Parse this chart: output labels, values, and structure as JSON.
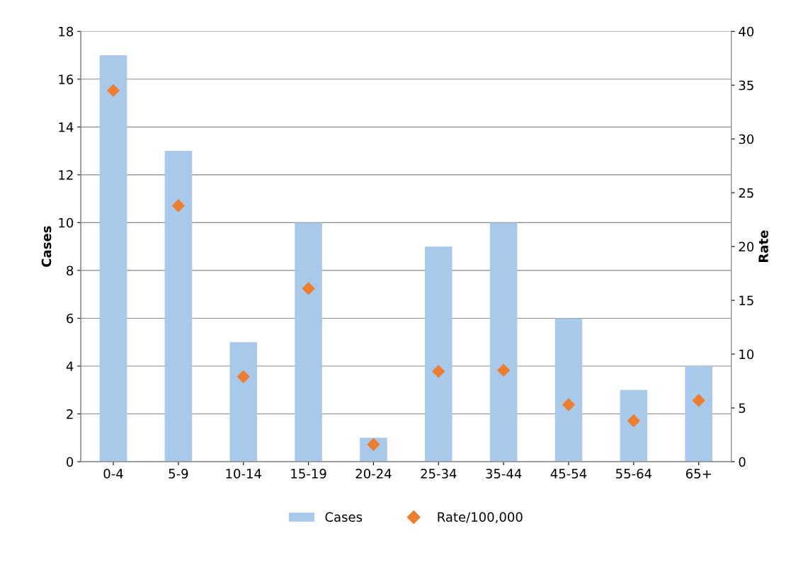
{
  "chart_data": {
    "type": "bar",
    "ylabel": "Cases",
    "y2label": "Rate",
    "categories": [
      "0-4",
      "5-9",
      "10-14",
      "15-19",
      "20-24",
      "25-34",
      "35-44",
      "45-54",
      "55-64",
      "65+"
    ],
    "series": [
      {
        "name": "Cases",
        "color": "#a9c9ea",
        "values": [
          17,
          13,
          5,
          10,
          1,
          9,
          10,
          6,
          3,
          4
        ]
      },
      {
        "name": "Rate/100,000",
        "type": "scatter",
        "axis": "y2",
        "color": "#ed7d31",
        "values": [
          34.5,
          23.8,
          7.9,
          16.1,
          1.6,
          8.4,
          8.5,
          5.3,
          3.8,
          5.7
        ]
      }
    ],
    "ylim": [
      0,
      18
    ],
    "yticks": [
      0,
      2,
      4,
      6,
      8,
      10,
      12,
      14,
      16,
      18
    ],
    "y2lim": [
      0,
      40
    ],
    "y2ticks": [
      0,
      5,
      10,
      15,
      20,
      25,
      30,
      35,
      40
    ],
    "grid": "y",
    "legend": "bottom",
    "marker": "diamond"
  }
}
